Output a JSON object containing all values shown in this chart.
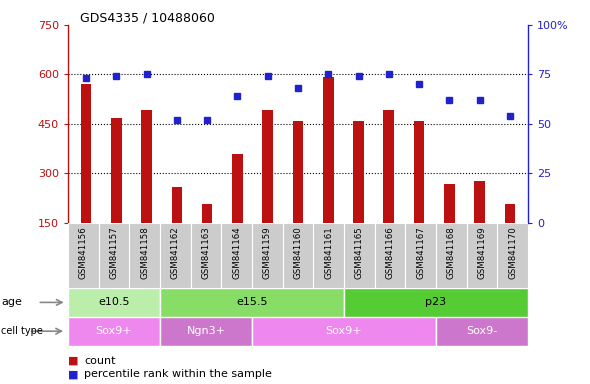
{
  "title": "GDS4335 / 10488060",
  "samples": [
    "GSM841156",
    "GSM841157",
    "GSM841158",
    "GSM841162",
    "GSM841163",
    "GSM841164",
    "GSM841159",
    "GSM841160",
    "GSM841161",
    "GSM841165",
    "GSM841166",
    "GSM841167",
    "GSM841168",
    "GSM841169",
    "GSM841170"
  ],
  "counts": [
    572,
    468,
    492,
    258,
    208,
    358,
    492,
    458,
    592,
    458,
    492,
    458,
    268,
    278,
    208
  ],
  "percentile": [
    73,
    74,
    75,
    52,
    52,
    64,
    74,
    68,
    75,
    74,
    75,
    70,
    62,
    62,
    54
  ],
  "ylim_left": [
    150,
    750
  ],
  "ylim_right": [
    0,
    100
  ],
  "yticks_left": [
    150,
    300,
    450,
    600,
    750
  ],
  "yticks_right": [
    0,
    25,
    50,
    75,
    100
  ],
  "grid_vals": [
    300,
    450,
    600
  ],
  "age_groups": [
    {
      "label": "e10.5",
      "start": 0,
      "end": 3,
      "color": "#bbeeaa"
    },
    {
      "label": "e15.5",
      "start": 3,
      "end": 9,
      "color": "#88dd66"
    },
    {
      "label": "p23",
      "start": 9,
      "end": 15,
      "color": "#55cc33"
    }
  ],
  "cell_groups": [
    {
      "label": "Sox9+",
      "start": 0,
      "end": 3,
      "color": "#ee88ee"
    },
    {
      "label": "Ngn3+",
      "start": 3,
      "end": 6,
      "color": "#cc77cc"
    },
    {
      "label": "Sox9+",
      "start": 6,
      "end": 12,
      "color": "#ee88ee"
    },
    {
      "label": "Sox9-",
      "start": 12,
      "end": 15,
      "color": "#cc77cc"
    }
  ],
  "bar_color": "#bb1111",
  "dot_color": "#2222cc",
  "bg_plot": "#ffffff",
  "bg_label": "#cccccc",
  "count_legend_color": "#bb1111",
  "pct_legend_color": "#2222cc",
  "right_tick_labels": [
    "0",
    "25",
    "50",
    "75",
    "100%"
  ]
}
